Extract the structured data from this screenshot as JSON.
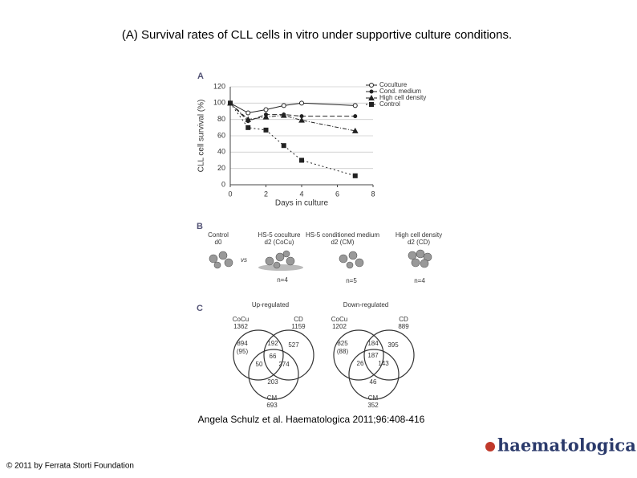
{
  "title": "(A) Survival rates of CLL cells in vitro under supportive culture conditions.",
  "chart_data": {
    "type": "line",
    "panel_label": "A",
    "x": [
      0,
      1,
      2,
      3,
      4,
      7
    ],
    "series": [
      {
        "name": "Coculture",
        "color": "#222222",
        "marker": "circle",
        "dash": "none",
        "values": [
          100,
          88,
          92,
          97,
          100,
          97
        ]
      },
      {
        "name": "Cond. medium",
        "color": "#222222",
        "marker": "dot",
        "dash": "6 3",
        "values": [
          100,
          78,
          86,
          86,
          84,
          84
        ]
      },
      {
        "name": "High cell density",
        "color": "#222222",
        "marker": "triangle",
        "dash": "5 2 1 2",
        "values": [
          100,
          80,
          83,
          85,
          79,
          66
        ]
      },
      {
        "name": "Control",
        "color": "#222222",
        "marker": "square",
        "dash": "2 3",
        "values": [
          100,
          70,
          67,
          48,
          30,
          11
        ]
      }
    ],
    "xlim": [
      0,
      8
    ],
    "xticks": [
      0,
      2,
      4,
      6,
      8
    ],
    "ylim": [
      0,
      120
    ],
    "yticks": [
      0,
      20,
      40,
      60,
      80,
      100,
      120
    ],
    "xlabel": "Days in culture",
    "ylabel": "CLL cell survival (%)",
    "grid": true,
    "legend": "top-right"
  },
  "panel_b": {
    "label": "B",
    "vs": "vs",
    "groups": [
      {
        "lines": [
          "Control",
          "d0"
        ]
      },
      {
        "lines": [
          "HS-5 coculture",
          "d2 (CoCu)"
        ],
        "n": "n=4"
      },
      {
        "lines": [
          "HS-5 conditioned medium",
          "d2 (CM)"
        ],
        "n": "n=5"
      },
      {
        "lines": [
          "High cell density",
          "d2 (CD)"
        ],
        "n": "n=4"
      }
    ]
  },
  "panel_c": {
    "label": "C",
    "venns": [
      {
        "title": "Up-regulated",
        "sets": [
          {
            "name": "CoCu",
            "count": 1362
          },
          {
            "name": "CD",
            "count": 1159
          },
          {
            "name": "CM",
            "count": 693
          }
        ],
        "regions": [
          "894",
          "(95)",
          "192",
          "527",
          "66",
          "50",
          "274",
          "203"
        ]
      },
      {
        "title": "Down-regulated",
        "sets": [
          {
            "name": "CoCu",
            "count": 1202
          },
          {
            "name": "CD",
            "count": 889
          },
          {
            "name": "CM",
            "count": 352
          }
        ],
        "regions": [
          "825",
          "(88)",
          "184",
          "395",
          "187",
          "26",
          "143",
          "46"
        ]
      }
    ]
  },
  "citation": "Angela Schulz et al. Haematologica 2011;96:408-416",
  "copyright": "© 2011 by Ferrata Storti Foundation",
  "logo": "haematologica"
}
